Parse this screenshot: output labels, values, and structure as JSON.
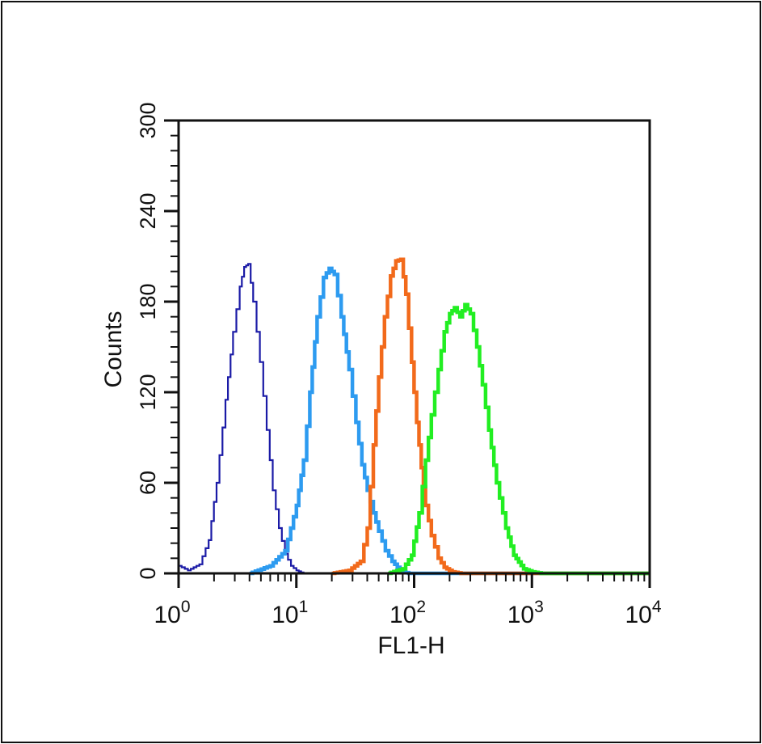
{
  "chart_data": {
    "type": "line",
    "title": "",
    "xlabel": "FL1-H",
    "ylabel": "Counts",
    "xscale": "log",
    "xlim": [
      1,
      10000
    ],
    "ylim": [
      0,
      300
    ],
    "x_ticks": [
      {
        "base": "10",
        "exp": "0"
      },
      {
        "base": "10",
        "exp": "1"
      },
      {
        "base": "10",
        "exp": "2"
      },
      {
        "base": "10",
        "exp": "3"
      },
      {
        "base": "10",
        "exp": "4"
      }
    ],
    "y_ticks": [
      "0",
      "60",
      "120",
      "180",
      "240",
      "300"
    ],
    "grid": false,
    "legend": "none",
    "series": [
      {
        "color": "#1a1aa6",
        "width": 2.2,
        "x": [
          1.0,
          1.2,
          1.5,
          1.8,
          2.1,
          2.5,
          2.9,
          3.3,
          3.6,
          3.9,
          4.3,
          4.9,
          5.6,
          6.3,
          7.1,
          8.0,
          9.0,
          10.0,
          11.5,
          13.0
        ],
        "y": [
          5,
          2,
          6,
          22,
          60,
          115,
          160,
          190,
          203,
          205,
          180,
          140,
          95,
          55,
          30,
          13,
          5,
          2,
          0,
          0
        ]
      },
      {
        "color": "#2d9bf0",
        "width": 4.5,
        "x": [
          4.0,
          6.0,
          8.0,
          10.0,
          11.5,
          13.0,
          15.0,
          17.0,
          19.0,
          21.0,
          24.0,
          28.0,
          32.0,
          36.0,
          40.0,
          45.0,
          50.0,
          57.0,
          65.0,
          72.0,
          80.0,
          90.0
        ],
        "y": [
          0,
          5,
          15,
          45,
          75,
          120,
          170,
          196,
          202,
          198,
          170,
          135,
          100,
          72,
          55,
          40,
          28,
          15,
          8,
          4,
          1,
          0
        ]
      },
      {
        "color": "#f26a1b",
        "width": 4.5,
        "x": [
          20.0,
          28.0,
          35.0,
          40.0,
          45.0,
          50.0,
          56.0,
          63.0,
          70.0,
          77.0,
          85.0,
          95.0,
          105.0,
          115.0,
          125.0,
          140.0,
          160.0,
          180.0,
          210.0,
          250.0
        ],
        "y": [
          0,
          2,
          8,
          30,
          85,
          130,
          170,
          197,
          207,
          208,
          185,
          140,
          100,
          70,
          45,
          25,
          10,
          4,
          1,
          0
        ]
      },
      {
        "color": "#22ee22",
        "width": 4.5,
        "x": [
          60.0,
          80.0,
          95.0,
          110.0,
          125.0,
          140.0,
          160.0,
          180.0,
          200.0,
          220.0,
          245.0,
          270.0,
          300.0,
          340.0,
          380.0,
          430.0,
          500.0,
          600.0,
          700.0,
          850.0,
          1000.0,
          1200.0
        ],
        "y": [
          0,
          3,
          12,
          40,
          75,
          105,
          135,
          160,
          172,
          176,
          170,
          178,
          172,
          150,
          125,
          95,
          60,
          30,
          12,
          3,
          1,
          0
        ]
      }
    ]
  }
}
